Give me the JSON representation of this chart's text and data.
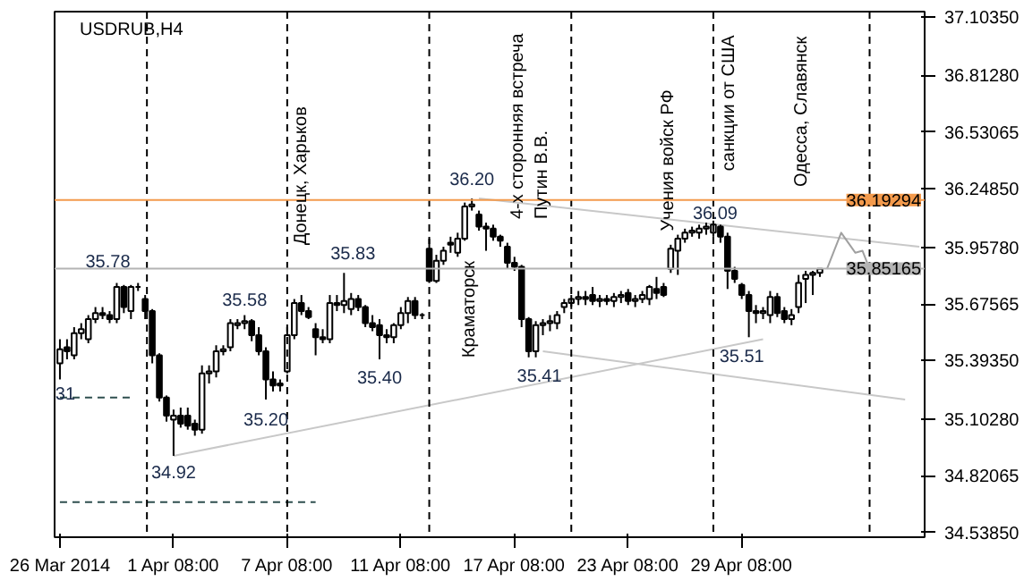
{
  "chart_data": {
    "type": "candlestick",
    "title": "USDRUB,H4",
    "categories": [
      "26 Mar 2014",
      null,
      null,
      null,
      null,
      null,
      null,
      null,
      null,
      null,
      null,
      null,
      null,
      null,
      null,
      null,
      "1 Apr 08:00",
      null,
      null,
      null,
      null,
      null,
      null,
      null,
      null,
      null,
      null,
      null,
      null,
      null,
      null,
      null,
      "7 Apr 08:00",
      null,
      null,
      null,
      null,
      null,
      null,
      null,
      null,
      null,
      null,
      null,
      null,
      null,
      null,
      null,
      "11 Apr 08:00",
      null,
      null,
      null,
      null,
      null,
      null,
      null,
      null,
      null,
      null,
      null,
      null,
      null,
      null,
      null,
      "17 Apr 08:00",
      null,
      null,
      null,
      null,
      null,
      null,
      null,
      null,
      null,
      null,
      null,
      null,
      null,
      null,
      null,
      "23 Apr 08:00",
      null,
      null,
      null,
      null,
      null,
      null,
      null,
      null,
      null,
      null,
      null,
      null,
      null,
      null,
      null,
      "29 Apr 08:00",
      null,
      null,
      null,
      null,
      null,
      null,
      null,
      null,
      null,
      null,
      null,
      null,
      null,
      null,
      null,
      null,
      null,
      null,
      null,
      null,
      null,
      null,
      null,
      null,
      null
    ],
    "ohlc": [
      [
        35.38,
        35.5,
        35.3,
        35.45
      ],
      [
        35.46,
        35.5,
        35.4,
        35.44
      ],
      [
        35.42,
        35.56,
        35.4,
        35.53
      ],
      [
        35.53,
        35.58,
        35.5,
        35.55
      ],
      [
        35.5,
        35.62,
        35.48,
        35.6
      ],
      [
        35.6,
        35.66,
        35.58,
        35.63
      ],
      [
        35.63,
        35.66,
        35.6,
        35.62
      ],
      [
        35.62,
        35.64,
        35.58,
        35.6
      ],
      [
        35.6,
        35.78,
        35.58,
        35.76
      ],
      [
        35.76,
        35.77,
        35.63,
        35.66
      ],
      [
        35.64,
        35.77,
        35.6,
        35.76
      ],
      [
        35.76,
        35.78,
        35.74,
        35.76
      ],
      [
        35.7,
        35.72,
        35.6,
        35.64
      ],
      [
        35.64,
        35.65,
        35.38,
        35.42
      ],
      [
        35.42,
        35.43,
        35.19,
        35.21
      ],
      [
        35.21,
        35.22,
        35.09,
        35.12
      ],
      [
        35.1,
        35.15,
        34.92,
        35.12
      ],
      [
        35.12,
        35.16,
        35.06,
        35.08
      ],
      [
        35.12,
        35.16,
        35.05,
        35.07
      ],
      [
        35.08,
        35.1,
        35.02,
        35.05
      ],
      [
        35.05,
        35.37,
        35.03,
        35.33
      ],
      [
        35.33,
        35.37,
        35.28,
        35.34
      ],
      [
        35.34,
        35.47,
        35.31,
        35.44
      ],
      [
        35.44,
        35.47,
        35.42,
        35.45
      ],
      [
        35.46,
        35.6,
        35.44,
        35.58
      ],
      [
        35.57,
        35.6,
        35.55,
        35.58
      ],
      [
        35.58,
        35.62,
        35.55,
        35.59
      ],
      [
        35.59,
        35.6,
        35.49,
        35.52
      ],
      [
        35.52,
        35.56,
        35.42,
        35.44
      ],
      [
        35.44,
        35.46,
        35.2,
        35.3
      ],
      [
        35.3,
        35.34,
        35.24,
        35.27
      ],
      [
        35.28,
        35.3,
        35.24,
        35.27
      ],
      [
        35.34,
        35.56,
        35.33,
        35.52
      ],
      [
        35.52,
        35.7,
        35.5,
        35.68
      ],
      [
        35.68,
        35.72,
        35.62,
        35.64
      ],
      [
        35.64,
        35.66,
        35.6,
        35.61
      ],
      [
        35.55,
        35.58,
        35.42,
        35.51
      ],
      [
        35.51,
        35.55,
        35.48,
        35.5
      ],
      [
        35.5,
        35.72,
        35.48,
        35.68
      ],
      [
        35.68,
        35.72,
        35.64,
        35.67
      ],
      [
        35.67,
        35.83,
        35.63,
        35.69
      ],
      [
        35.65,
        35.73,
        35.62,
        35.7
      ],
      [
        35.7,
        35.72,
        35.64,
        35.66
      ],
      [
        35.66,
        35.67,
        35.56,
        35.58
      ],
      [
        35.58,
        35.62,
        35.54,
        35.56
      ],
      [
        35.57,
        35.6,
        35.4,
        35.52
      ],
      [
        35.52,
        35.55,
        35.48,
        35.51
      ],
      [
        35.51,
        35.58,
        35.48,
        35.57
      ],
      [
        35.57,
        35.66,
        35.55,
        35.63
      ],
      [
        35.63,
        35.71,
        35.58,
        35.69
      ],
      [
        35.69,
        35.71,
        35.6,
        35.62
      ],
      [
        35.62,
        35.63,
        35.6,
        35.62
      ],
      [
        35.95,
        36.0,
        35.78,
        35.79
      ],
      [
        35.79,
        35.92,
        35.78,
        35.89
      ],
      [
        35.89,
        35.96,
        35.87,
        35.94
      ],
      [
        35.98,
        36.01,
        35.93,
        35.97
      ],
      [
        35.93,
        36.03,
        35.91,
        36.0
      ],
      [
        36.0,
        36.18,
        35.99,
        36.16
      ],
      [
        36.16,
        36.2,
        36.14,
        36.17
      ],
      [
        36.12,
        36.14,
        36.04,
        36.06
      ],
      [
        36.06,
        36.08,
        35.94,
        36.05
      ],
      [
        36.05,
        36.07,
        35.99,
        36.01
      ],
      [
        36.01,
        36.02,
        35.96,
        35.99
      ],
      [
        35.96,
        35.98,
        35.85,
        35.88
      ],
      [
        35.88,
        35.91,
        35.84,
        35.86
      ],
      [
        35.86,
        35.87,
        35.56,
        35.6
      ],
      [
        35.6,
        35.61,
        35.41,
        35.44
      ],
      [
        35.44,
        35.59,
        35.41,
        35.57
      ],
      [
        35.57,
        35.6,
        35.52,
        35.58
      ],
      [
        35.58,
        35.62,
        35.54,
        35.59
      ],
      [
        35.58,
        35.64,
        35.55,
        35.62
      ],
      [
        35.66,
        35.7,
        35.63,
        35.68
      ],
      [
        35.68,
        35.72,
        35.65,
        35.7
      ],
      [
        35.7,
        35.74,
        35.67,
        35.71
      ],
      [
        35.71,
        35.74,
        35.67,
        35.7
      ],
      [
        35.72,
        35.76,
        35.67,
        35.69
      ],
      [
        35.69,
        35.72,
        35.66,
        35.7
      ],
      [
        35.7,
        35.72,
        35.67,
        35.69
      ],
      [
        35.69,
        35.73,
        35.66,
        35.71
      ],
      [
        35.71,
        35.74,
        35.68,
        35.72
      ],
      [
        35.73,
        35.75,
        35.67,
        35.69
      ],
      [
        35.69,
        35.72,
        35.66,
        35.7
      ],
      [
        35.7,
        35.74,
        35.68,
        35.72
      ],
      [
        35.7,
        35.77,
        35.67,
        35.76
      ],
      [
        35.75,
        35.81,
        35.7,
        35.73
      ],
      [
        35.76,
        35.78,
        35.71,
        35.72
      ],
      [
        35.85,
        35.97,
        35.83,
        35.95
      ],
      [
        35.94,
        36.02,
        35.82,
        36.0
      ],
      [
        36.0,
        36.05,
        35.98,
        36.03
      ],
      [
        36.03,
        36.06,
        36.01,
        36.04
      ],
      [
        36.03,
        36.07,
        36.0,
        36.05
      ],
      [
        36.05,
        36.08,
        36.02,
        36.06
      ],
      [
        36.03,
        36.09,
        36.01,
        36.07
      ],
      [
        36.06,
        36.07,
        35.98,
        36.01
      ],
      [
        36.01,
        36.03,
        35.75,
        35.84
      ],
      [
        35.84,
        35.86,
        35.78,
        35.8
      ],
      [
        35.77,
        35.78,
        35.7,
        35.72
      ],
      [
        35.72,
        35.74,
        35.51,
        35.64
      ],
      [
        35.64,
        35.67,
        35.58,
        35.63
      ],
      [
        35.63,
        35.66,
        35.6,
        35.64
      ],
      [
        35.62,
        35.74,
        35.58,
        35.71
      ],
      [
        35.71,
        35.73,
        35.61,
        35.63
      ],
      [
        35.64,
        35.66,
        35.58,
        35.6
      ],
      [
        35.6,
        35.65,
        35.57,
        35.62
      ],
      [
        35.66,
        35.82,
        35.63,
        35.78
      ],
      [
        35.8,
        35.84,
        35.68,
        35.82
      ],
      [
        35.82,
        35.84,
        35.72,
        35.83
      ],
      [
        35.83,
        35.85,
        35.81,
        35.85
      ],
      null,
      null,
      null,
      null,
      null,
      null,
      null,
      null,
      null,
      null,
      null,
      null,
      null,
      null
    ],
    "color": "#000000",
    "series": [
      {
        "type": "line",
        "color": "#c8c8c8",
        "values": [
          null,
          null,
          null,
          null,
          null,
          null,
          null,
          null,
          null,
          null,
          null,
          null,
          null,
          null,
          null,
          null,
          34.92,
          null,
          null,
          null,
          null,
          null,
          null,
          null,
          null,
          null,
          null,
          null,
          null,
          null,
          null,
          null,
          null,
          null,
          null,
          null,
          null,
          null,
          null,
          null,
          null,
          null,
          null,
          null,
          null,
          null,
          null,
          null,
          null,
          null,
          null,
          null,
          null,
          null,
          null,
          null,
          null,
          null,
          null,
          null,
          null,
          null,
          null,
          null,
          null,
          null,
          null,
          null,
          null,
          null,
          null,
          null,
          null,
          null,
          null,
          null,
          null,
          null,
          null,
          null,
          null,
          null,
          null,
          null,
          null,
          null,
          null,
          null,
          null,
          null,
          null,
          null,
          null,
          null,
          null,
          null,
          null,
          null,
          null,
          35.5,
          null,
          null,
          null,
          null,
          null,
          null,
          null,
          null,
          null,
          null,
          null,
          null,
          null,
          null,
          null,
          null,
          null,
          null,
          null,
          null,
          null,
          null
        ]
      },
      {
        "type": "line",
        "color": "#c8c8c8",
        "values": [
          null,
          null,
          null,
          null,
          null,
          null,
          null,
          null,
          null,
          null,
          null,
          null,
          null,
          null,
          null,
          null,
          null,
          null,
          null,
          null,
          null,
          null,
          null,
          null,
          null,
          null,
          null,
          null,
          null,
          null,
          null,
          null,
          null,
          null,
          null,
          null,
          null,
          null,
          null,
          null,
          null,
          null,
          null,
          null,
          null,
          null,
          null,
          null,
          null,
          null,
          null,
          null,
          null,
          null,
          null,
          null,
          null,
          null,
          null,
          36.2,
          null,
          null,
          null,
          null,
          null,
          null,
          null,
          null,
          null,
          null,
          null,
          null,
          null,
          null,
          null,
          null,
          null,
          null,
          null,
          null,
          null,
          null,
          null,
          null,
          null,
          null,
          null,
          null,
          null,
          null,
          null,
          null,
          null,
          null,
          null,
          null,
          null,
          null,
          null,
          null,
          null,
          null,
          null,
          null,
          null,
          null,
          null,
          null,
          null,
          null,
          null,
          null,
          null,
          null,
          null,
          null,
          null,
          null,
          null,
          null,
          null,
          35.96
        ]
      },
      {
        "type": "line",
        "color": "#c8c8c8",
        "values": [
          null,
          null,
          null,
          null,
          null,
          null,
          null,
          null,
          null,
          null,
          null,
          null,
          null,
          null,
          null,
          null,
          null,
          null,
          null,
          null,
          null,
          null,
          null,
          null,
          null,
          null,
          null,
          null,
          null,
          null,
          null,
          null,
          null,
          null,
          null,
          null,
          null,
          null,
          null,
          null,
          null,
          null,
          null,
          null,
          null,
          null,
          null,
          null,
          null,
          null,
          null,
          null,
          null,
          null,
          null,
          null,
          null,
          null,
          null,
          null,
          null,
          null,
          null,
          null,
          null,
          null,
          null,
          null,
          35.44,
          null,
          null,
          null,
          null,
          null,
          null,
          null,
          null,
          null,
          null,
          null,
          null,
          null,
          null,
          null,
          null,
          null,
          null,
          null,
          null,
          null,
          null,
          null,
          null,
          null,
          null,
          null,
          null,
          null,
          null,
          null,
          null,
          null,
          null,
          null,
          null,
          null,
          null,
          null,
          null,
          null,
          null,
          null,
          null,
          null,
          null,
          null,
          null,
          null,
          null,
          35.2,
          null,
          null
        ]
      },
      {
        "type": "line",
        "color": "#a0a0a0",
        "values": [
          null,
          null,
          null,
          null,
          null,
          null,
          null,
          null,
          null,
          null,
          null,
          null,
          null,
          null,
          null,
          null,
          null,
          null,
          null,
          null,
          null,
          null,
          null,
          null,
          null,
          null,
          null,
          null,
          null,
          null,
          null,
          null,
          null,
          null,
          null,
          null,
          null,
          null,
          null,
          null,
          null,
          null,
          null,
          null,
          null,
          null,
          null,
          null,
          null,
          null,
          null,
          null,
          null,
          null,
          null,
          null,
          null,
          null,
          null,
          null,
          null,
          null,
          null,
          null,
          null,
          null,
          null,
          null,
          null,
          null,
          null,
          null,
          null,
          null,
          null,
          null,
          null,
          null,
          null,
          null,
          null,
          null,
          null,
          null,
          null,
          null,
          null,
          null,
          null,
          null,
          null,
          null,
          null,
          null,
          null,
          null,
          null,
          null,
          null,
          null,
          null,
          null,
          null,
          null,
          null,
          null,
          null,
          null,
          35.85,
          null,
          36.03,
          null,
          35.93,
          35.94,
          35.85,
          null,
          null,
          null,
          null,
          null,
          null,
          null
        ]
      },
      {
        "type": "line",
        "color": "#2f4f4f",
        "line_style": "dashed",
        "values": [
          35.21,
          null,
          null,
          null,
          null,
          null,
          null,
          null,
          null,
          null,
          35.21,
          null,
          null,
          null,
          null,
          null,
          null,
          null,
          null,
          null,
          null,
          null,
          null,
          null,
          null,
          null,
          null,
          null,
          null,
          null,
          null,
          null,
          null,
          null,
          null,
          null,
          null,
          null,
          null,
          null,
          null,
          null,
          null,
          null,
          null,
          null,
          null,
          null,
          null,
          null,
          null,
          null,
          null,
          null,
          null,
          null,
          null,
          null,
          null,
          null,
          null,
          null,
          null,
          null,
          null,
          null,
          null,
          null,
          null,
          null,
          null,
          null,
          null,
          null,
          null,
          null,
          null,
          null,
          null,
          null,
          null,
          null,
          null,
          null,
          null,
          null,
          null,
          null,
          null,
          null,
          null,
          null,
          null,
          null,
          null,
          null,
          null,
          null,
          null,
          null,
          null,
          null,
          null,
          null,
          null,
          null,
          null,
          null,
          null,
          null,
          null,
          null,
          null,
          null,
          null,
          null,
          null,
          null,
          null,
          null,
          null,
          null
        ]
      },
      {
        "type": "line",
        "color": "#2f4f4f",
        "line_style": "dashed",
        "values": [
          34.69,
          null,
          null,
          null,
          null,
          null,
          null,
          null,
          null,
          null,
          null,
          null,
          null,
          null,
          null,
          null,
          null,
          null,
          null,
          null,
          null,
          null,
          null,
          null,
          null,
          null,
          null,
          null,
          null,
          null,
          null,
          null,
          null,
          null,
          null,
          null,
          34.69,
          null,
          null,
          null,
          null,
          null,
          null,
          null,
          null,
          null,
          null,
          null,
          null,
          null,
          null,
          null,
          null,
          null,
          null,
          null,
          null,
          null,
          null,
          null,
          null,
          null,
          null,
          null,
          null,
          null,
          null,
          null,
          null,
          null,
          null,
          null,
          null,
          null,
          null,
          null,
          null,
          null,
          null,
          null,
          null,
          null,
          null,
          null,
          null,
          null,
          null,
          null,
          null,
          null,
          null,
          null,
          null,
          null,
          null,
          null,
          null,
          null,
          null,
          null,
          null,
          null,
          null,
          null,
          null,
          null,
          null,
          null,
          null,
          null,
          null,
          null,
          null,
          null,
          null,
          null,
          null,
          null,
          null,
          null,
          null,
          null
        ]
      }
    ],
    "ylim": [
      34.515,
      37.13
    ],
    "yticks": [
      {
        "value": 34.5385,
        "label": "34.53850"
      },
      {
        "value": 34.82065,
        "label": "34.82065"
      },
      {
        "value": 35.1028,
        "label": "35.10280"
      },
      {
        "value": 35.3935,
        "label": "35.39350"
      },
      {
        "value": 35.67565,
        "label": "35.67565"
      },
      {
        "value": 35.9578,
        "label": "35.95780"
      },
      {
        "value": 36.2485,
        "label": "36.24850"
      },
      {
        "value": 36.53065,
        "label": "36.53065"
      },
      {
        "value": 36.8128,
        "label": "36.81280"
      },
      {
        "value": 37.1035,
        "label": "37.10350"
      }
    ],
    "ref_lines": [
      {
        "axis": "y",
        "value": 36.19294,
        "label": "36.19294",
        "color": "#f39a4c"
      },
      {
        "axis": "y",
        "value": 35.85165,
        "label": "35.85165",
        "color": "#b4b4b4"
      }
    ],
    "annotations": [
      "35.78",
      "35.58",
      "35.20",
      "34.92",
      "35.83",
      "35.40",
      "36.20",
      "35.41",
      "36.09",
      "35.51",
      "31",
      "Донецк, Харьков",
      "Краматорск",
      "4-х сторонняя встреча\nПутин В.В.",
      "Учения войск РФ",
      "санкции от США",
      "Одесса, Славянск"
    ]
  }
}
